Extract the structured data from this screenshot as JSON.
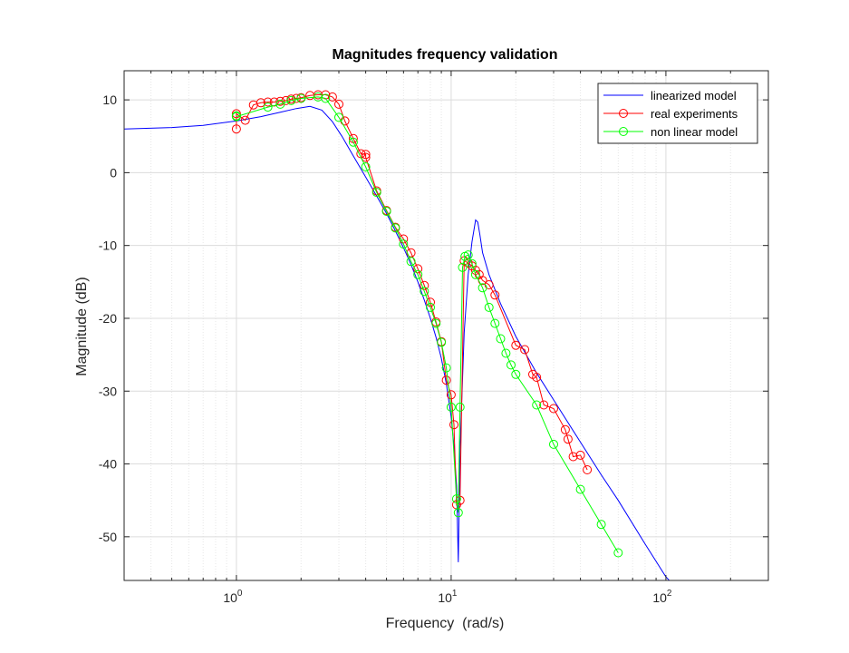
{
  "chart_data": {
    "type": "line",
    "title": "Magnitudes frequency validation",
    "xlabel": "Frequency  (rad/s)",
    "ylabel": "Magnitude (dB)",
    "xscale": "log",
    "xlim": [
      0.3,
      300
    ],
    "ylim": [
      -56,
      14
    ],
    "x_ticks": [
      {
        "base": "10",
        "exp": "0",
        "value": 1
      },
      {
        "base": "10",
        "exp": "1",
        "value": 10
      },
      {
        "base": "10",
        "exp": "2",
        "value": 100
      }
    ],
    "y_ticks": [
      {
        "label": "10",
        "value": 10
      },
      {
        "label": "0",
        "value": 0
      },
      {
        "label": "-10",
        "value": -10
      },
      {
        "label": "-20",
        "value": -20
      },
      {
        "label": "-30",
        "value": -30
      },
      {
        "label": "-40",
        "value": -40
      },
      {
        "label": "-50",
        "value": -50
      }
    ],
    "grid": true,
    "minor_grid": true,
    "legend_position": "top-right",
    "series": [
      {
        "name": "linearized model",
        "color": "#0000ff",
        "marker": "none",
        "x": [
          0.3,
          0.5,
          0.7,
          1.0,
          1.3,
          1.6,
          1.9,
          2.2,
          2.5,
          2.8,
          3.1,
          3.5,
          4.0,
          4.5,
          5.0,
          5.5,
          6.0,
          6.5,
          7.0,
          7.5,
          8.0,
          8.5,
          9.0,
          9.5,
          10.0,
          10.3,
          10.6,
          10.8,
          11.0,
          11.5,
          12.0,
          12.5,
          13.0,
          13.3,
          13.6,
          14.0,
          15.0,
          17.0,
          20.0,
          25.0,
          30.0,
          40.0,
          50.0,
          60.0,
          80.0,
          100.0,
          120.0
        ],
        "y": [
          6.0,
          6.2,
          6.5,
          7.1,
          7.7,
          8.3,
          8.8,
          9.1,
          8.6,
          7.0,
          5.0,
          2.3,
          -0.6,
          -3.2,
          -5.6,
          -8.0,
          -10.3,
          -12.6,
          -15.0,
          -17.5,
          -20.0,
          -22.6,
          -25.5,
          -29.0,
          -33.5,
          -37.5,
          -43.0,
          -53.5,
          -38.0,
          -22.0,
          -14.0,
          -9.5,
          -6.5,
          -6.8,
          -8.5,
          -11.0,
          -14.0,
          -18.0,
          -22.5,
          -27.5,
          -31.2,
          -37.0,
          -41.5,
          -45.0,
          -51.0,
          -55.5,
          -58.0
        ]
      },
      {
        "name": "real experiments",
        "color": "#ff0000",
        "marker": "circle",
        "x": [
          1.0,
          1.0,
          1.0,
          1.1,
          1.2,
          1.3,
          1.4,
          1.5,
          1.6,
          1.7,
          1.8,
          1.9,
          2.0,
          2.2,
          2.4,
          2.6,
          2.8,
          3.0,
          3.2,
          3.5,
          3.8,
          4.0,
          4.0,
          4.5,
          5.0,
          5.5,
          6.0,
          6.5,
          7.0,
          7.5,
          8.0,
          8.5,
          9.0,
          9.5,
          10.0,
          10.3,
          10.6,
          11.0,
          11.5,
          12.0,
          12.5,
          13.0,
          13.5,
          14.0,
          15.0,
          16.0,
          20.0,
          22.0,
          24.0,
          25.0,
          27.0,
          30.0,
          34.0,
          35.0,
          37.0,
          40.0,
          43.0
        ],
        "y": [
          6.0,
          7.8,
          8.1,
          7.2,
          9.3,
          9.6,
          9.7,
          9.7,
          9.8,
          9.9,
          10.1,
          10.2,
          10.3,
          10.6,
          10.7,
          10.7,
          10.4,
          9.4,
          7.1,
          4.7,
          2.6,
          2.5,
          2.1,
          -2.5,
          -5.2,
          -7.5,
          -9.1,
          -11.0,
          -13.2,
          -15.5,
          -17.8,
          -20.5,
          -23.2,
          -28.5,
          -30.5,
          -34.6,
          -45.6,
          -45.0,
          -12.1,
          -12.4,
          -12.8,
          -13.4,
          -14.0,
          -14.8,
          -15.4,
          -16.8,
          -23.7,
          -24.3,
          -27.7,
          -28.1,
          -31.9,
          -32.4,
          -35.3,
          -36.6,
          -39.0,
          -38.8,
          -40.8
        ]
      },
      {
        "name": "non linear model",
        "color": "#00ff00",
        "marker": "circle",
        "x": [
          1.0,
          1.0,
          1.4,
          1.6,
          1.8,
          2.0,
          2.4,
          2.6,
          3.0,
          3.5,
          4.0,
          4.5,
          5.0,
          5.5,
          6.0,
          6.5,
          7.0,
          7.5,
          8.0,
          8.5,
          9.0,
          9.5,
          10.0,
          10.6,
          10.8,
          11.0,
          11.3,
          11.6,
          12.0,
          12.5,
          13.0,
          14.0,
          15.0,
          16.0,
          17.0,
          18.0,
          19.0,
          20.0,
          25.0,
          30.0,
          40.0,
          50.0,
          60.0
        ],
        "y": [
          7.8,
          7.7,
          9.0,
          9.4,
          9.9,
          10.2,
          10.4,
          10.2,
          7.6,
          4.2,
          0.8,
          -2.7,
          -5.3,
          -7.6,
          -9.8,
          -12.2,
          -14.0,
          -16.3,
          -18.5,
          -20.7,
          -23.3,
          -26.8,
          -32.2,
          -44.8,
          -46.7,
          -32.2,
          -13.0,
          -11.5,
          -11.3,
          -12.5,
          -14.0,
          -15.8,
          -18.5,
          -20.7,
          -22.8,
          -24.8,
          -26.4,
          -27.7,
          -31.9,
          -37.3,
          -43.5,
          -48.3,
          -52.2
        ]
      }
    ]
  }
}
